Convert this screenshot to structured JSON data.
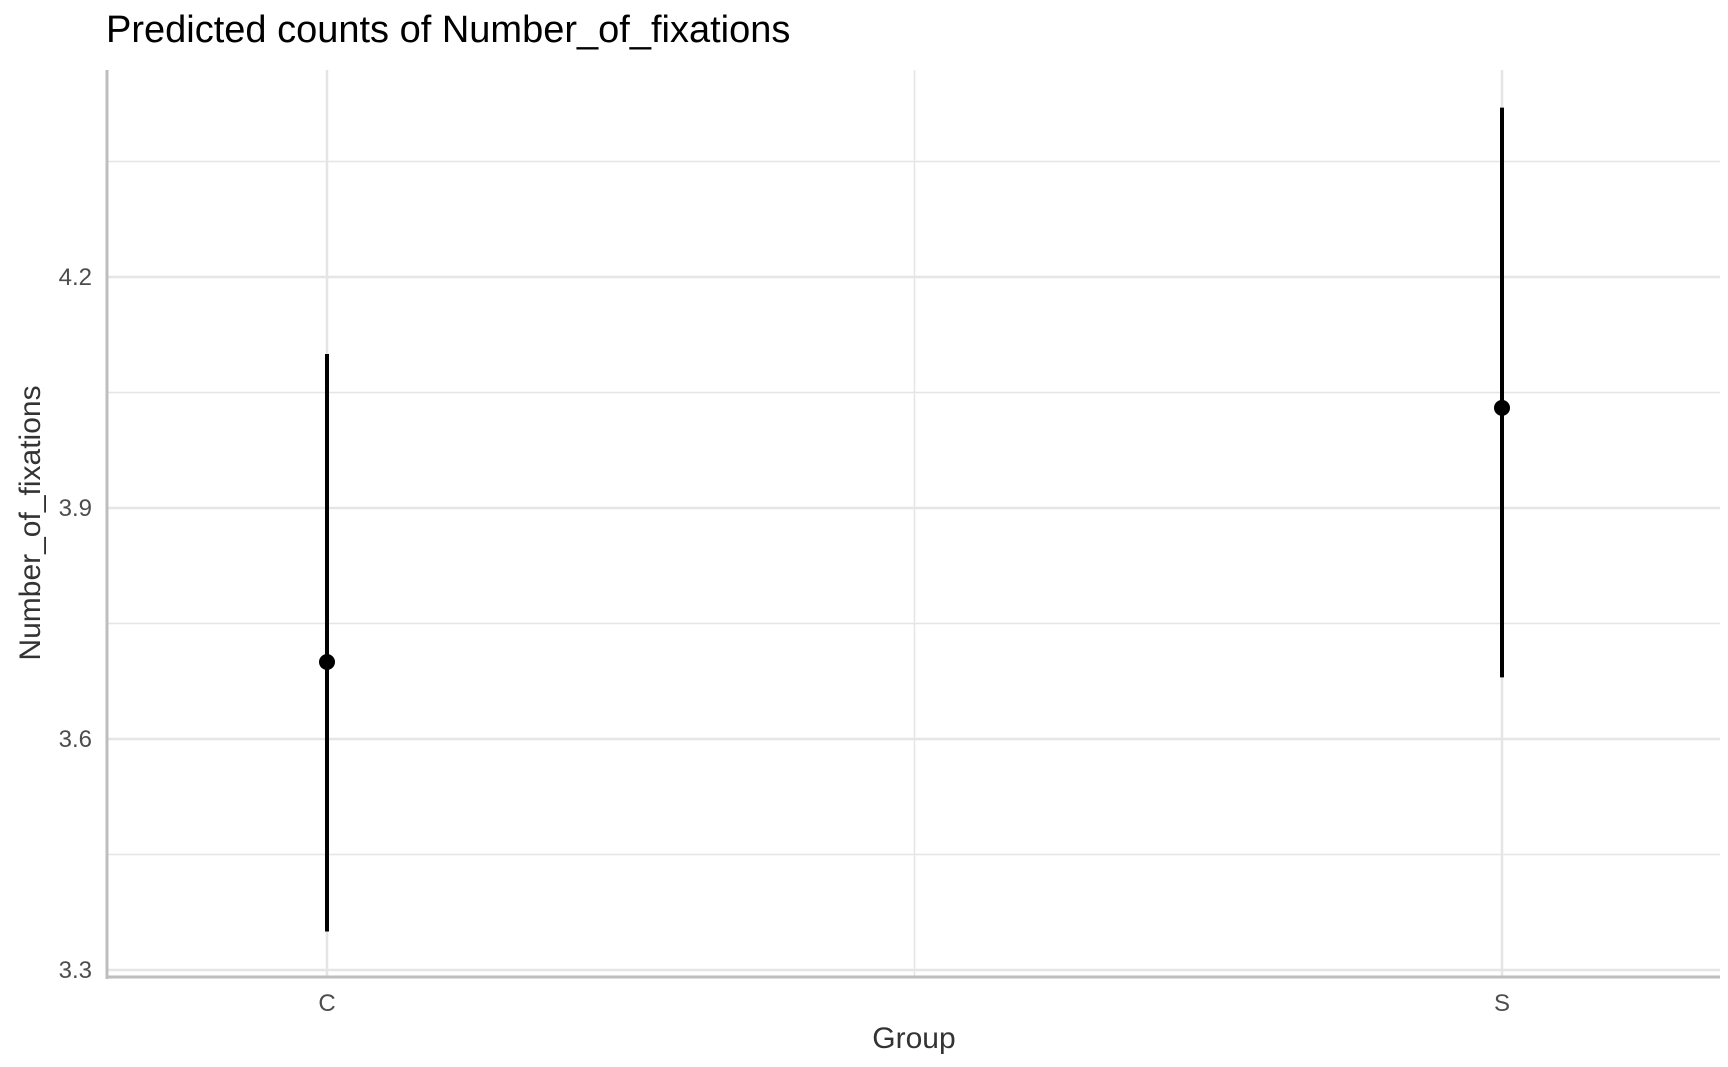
{
  "chart_data": {
    "type": "scatter",
    "title": "Predicted counts of Number_of_fixations",
    "xlabel": "Group",
    "ylabel": "Number_of_fixations",
    "categories": [
      "C",
      "S"
    ],
    "series": [
      {
        "points": [
          {
            "x": "C",
            "y": 3.7,
            "lower": 3.35,
            "upper": 4.1
          },
          {
            "x": "S",
            "y": 4.03,
            "lower": 3.68,
            "upper": 4.42
          }
        ]
      }
    ],
    "yticks": [
      3.3,
      3.6,
      3.9,
      4.2
    ],
    "yticklabels": [
      "3.3",
      "3.6",
      "3.9",
      "4.2"
    ],
    "ylim": [
      3.3,
      4.55
    ],
    "grid": true,
    "colors": {
      "point": "#000000",
      "grid": "#e5e5e5",
      "axis": "#bebebe"
    }
  }
}
